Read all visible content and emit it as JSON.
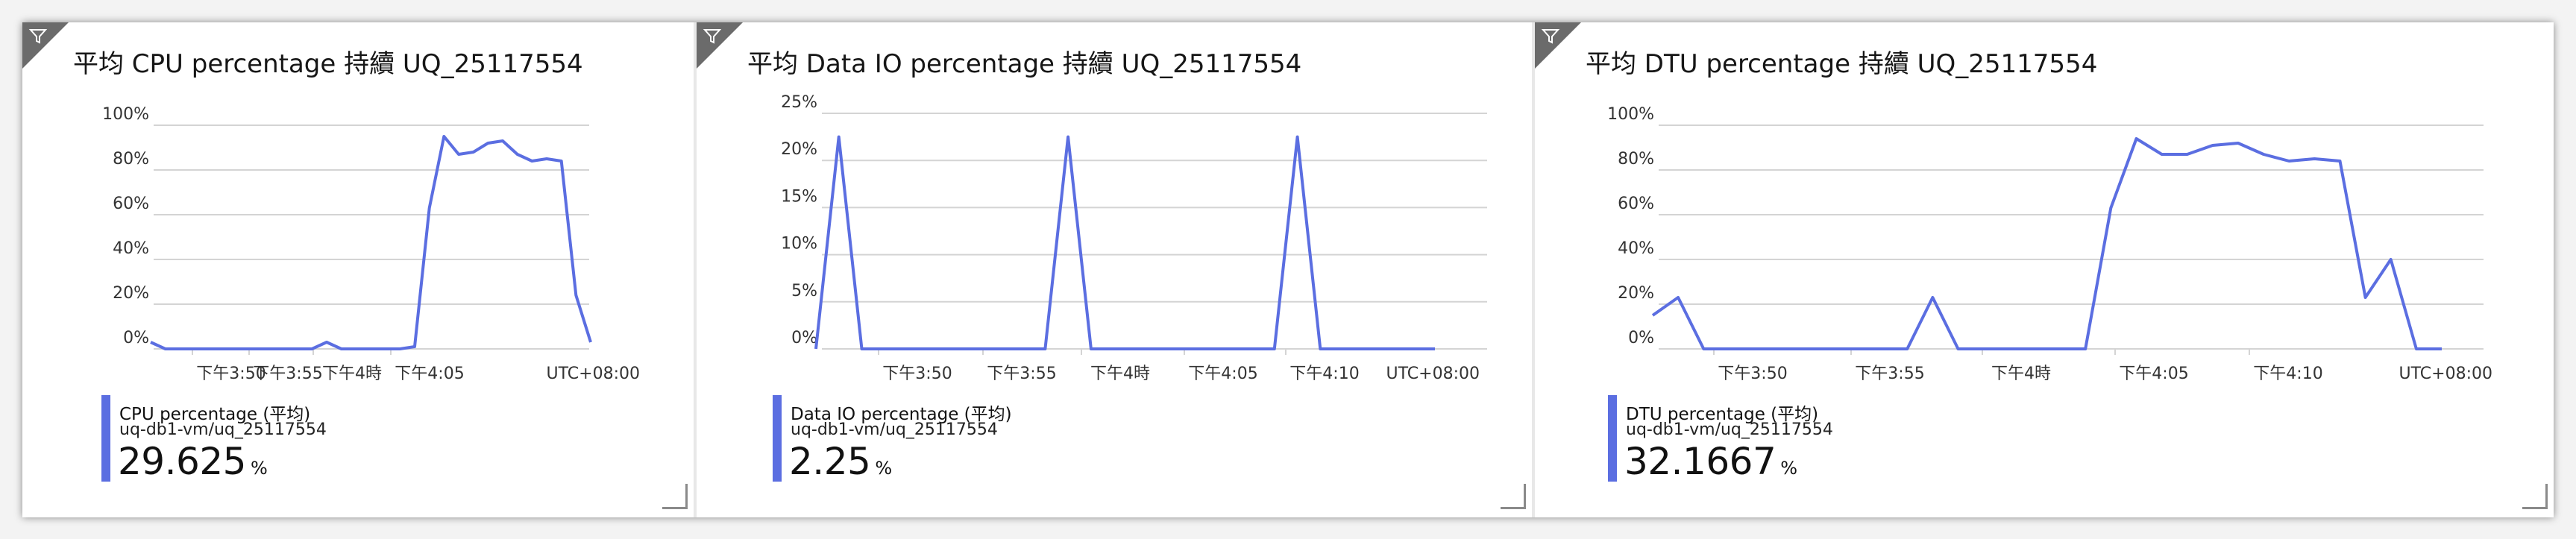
{
  "colors": {
    "series": "#5b6ee1",
    "grid": "#d4d4d4",
    "filter": "#6b6b6b"
  },
  "tiles": [
    {
      "title": "平均 CPU percentage 持續 UQ_25117554",
      "legend": {
        "name": "CPU percentage (平均)",
        "resource": "uq-db1-vm/uq_25117554",
        "value": "29.625",
        "unit": "%"
      },
      "timezone": "UTC+08:00"
    },
    {
      "title": "平均 Data IO percentage 持續 UQ_25117554",
      "legend": {
        "name": "Data IO percentage (平均)",
        "resource": "uq-db1-vm/uq_25117554",
        "value": "2.25",
        "unit": "%"
      },
      "timezone": "UTC+08:00"
    },
    {
      "title": "平均 DTU percentage 持續 UQ_25117554",
      "legend": {
        "name": "DTU percentage (平均)",
        "resource": "uq-db1-vm/uq_25117554",
        "value": "32.1667",
        "unit": "%"
      },
      "timezone": "UTC+08:00"
    }
  ],
  "chart_data": [
    {
      "type": "line",
      "title": "平均 CPU percentage 持續 UQ_25117554",
      "ylabel": "",
      "ylim": [
        0,
        100
      ],
      "yticks": [
        "0%",
        "20%",
        "40%",
        "60%",
        "80%",
        "100%"
      ],
      "xticks": [
        "下午3:50",
        "下午3:55",
        "下午4時",
        "下午4:05"
      ],
      "xlabel": "UTC+08:00",
      "grid": true,
      "series": [
        {
          "name": "CPU percentage (平均)",
          "x": [
            "15:45",
            "15:46",
            "15:47",
            "15:48",
            "15:49",
            "15:50",
            "15:51",
            "15:52",
            "15:53",
            "15:54",
            "15:55",
            "15:56",
            "15:57",
            "15:58",
            "15:59",
            "16:00",
            "16:01",
            "16:02",
            "16:03",
            "16:04",
            "16:05",
            "16:06",
            "16:07",
            "16:08",
            "16:09",
            "16:10",
            "16:11",
            "16:12",
            "16:13",
            "16:14",
            "16:15"
          ],
          "values": [
            3,
            0,
            0,
            0,
            0,
            0,
            0,
            0,
            0,
            0,
            0,
            0,
            3,
            0,
            0,
            0,
            0,
            0,
            1,
            63,
            95,
            87,
            88,
            92,
            93,
            87,
            84,
            85,
            84,
            24,
            3
          ]
        }
      ]
    },
    {
      "type": "line",
      "title": "平均 Data IO percentage 持續 UQ_25117554",
      "ylabel": "",
      "ylim": [
        0,
        25
      ],
      "yticks": [
        "0%",
        "5%",
        "10%",
        "15%",
        "20%",
        "25%"
      ],
      "xticks": [
        "下午3:50",
        "下午3:55",
        "下午4時",
        "下午4:05",
        "下午4:10"
      ],
      "xlabel": "UTC+08:00",
      "grid": true,
      "series": [
        {
          "name": "Data IO percentage (平均)",
          "x": [
            "15:46",
            "15:47",
            "15:48",
            "15:49",
            "15:50",
            "15:51",
            "15:52",
            "15:53",
            "15:54",
            "15:55",
            "15:56",
            "15:57",
            "15:58",
            "15:59",
            "16:00",
            "16:01",
            "16:02",
            "16:03",
            "16:04",
            "16:05",
            "16:06",
            "16:07",
            "16:08",
            "16:09",
            "16:10",
            "16:11",
            "16:12",
            "16:13"
          ],
          "values": [
            0,
            22.5,
            0,
            0,
            0,
            0,
            0,
            0,
            0,
            0,
            0,
            22.5,
            0,
            0,
            0,
            0,
            0,
            0,
            0,
            0,
            0,
            22.5,
            0,
            0,
            0,
            0,
            0,
            0
          ]
        }
      ]
    },
    {
      "type": "line",
      "title": "平均 DTU percentage 持續 UQ_25117554",
      "ylabel": "",
      "ylim": [
        0,
        100
      ],
      "yticks": [
        "0%",
        "20%",
        "40%",
        "60%",
        "80%",
        "100%"
      ],
      "xticks": [
        "下午3:50",
        "下午3:55",
        "下午4時",
        "下午4:05",
        "下午4:10"
      ],
      "xlabel": "UTC+08:00",
      "grid": true,
      "series": [
        {
          "name": "DTU percentage (平均)",
          "x": [
            "15:46",
            "15:47",
            "15:48",
            "15:49",
            "15:50",
            "15:51",
            "15:52",
            "15:53",
            "15:54",
            "15:55",
            "15:56",
            "15:57",
            "15:58",
            "15:59",
            "16:00",
            "16:01",
            "16:02",
            "16:03",
            "16:04",
            "16:05",
            "16:06",
            "16:07",
            "16:08",
            "16:09",
            "16:10",
            "16:11",
            "16:12",
            "16:13",
            "16:14",
            "16:15",
            "16:16",
            "16:17"
          ],
          "values": [
            15,
            23,
            0,
            0,
            0,
            0,
            0,
            0,
            0,
            0,
            0,
            23,
            0,
            0,
            0,
            0,
            0,
            0,
            63,
            94,
            87,
            87,
            91,
            92,
            87,
            84,
            85,
            84,
            23,
            40,
            0,
            0
          ]
        }
      ]
    }
  ]
}
